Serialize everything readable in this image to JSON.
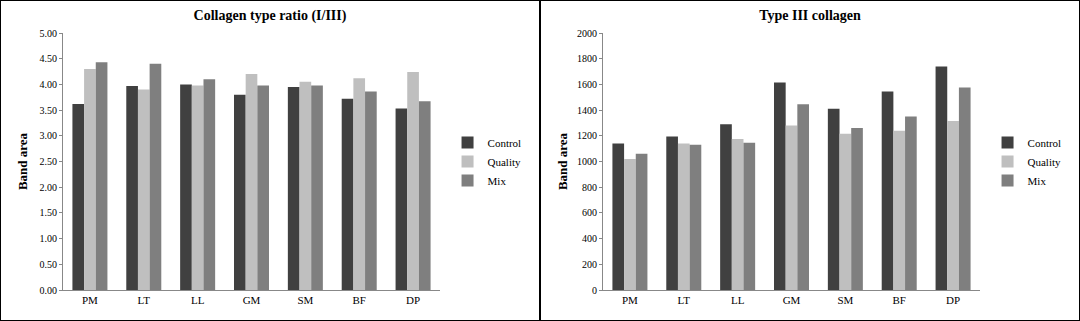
{
  "chart_data": [
    {
      "type": "bar",
      "title": "Collagen type ratio (I/III)",
      "y_label": "Band area",
      "categories": [
        "PM",
        "LT",
        "LL",
        "GM",
        "SM",
        "BF",
        "DP"
      ],
      "series": [
        {
          "name": "Control",
          "color": "#404040",
          "values": [
            3.62,
            3.97,
            4.0,
            3.8,
            3.95,
            3.72,
            3.53
          ]
        },
        {
          "name": "Quality",
          "color": "#bfbfbf",
          "values": [
            4.3,
            3.9,
            3.98,
            4.2,
            4.05,
            4.12,
            4.24
          ]
        },
        {
          "name": "Mix",
          "color": "#7f7f7f",
          "values": [
            4.43,
            4.4,
            4.1,
            3.98,
            3.98,
            3.86,
            3.67
          ]
        }
      ],
      "ylim": [
        0,
        5
      ],
      "yticks": [
        {
          "value": 0,
          "label": "0.00"
        },
        {
          "value": 0.5,
          "label": "0.50"
        },
        {
          "value": 1,
          "label": "1.00"
        },
        {
          "value": 1.5,
          "label": "1.50"
        },
        {
          "value": 2,
          "label": "2.00"
        },
        {
          "value": 2.5,
          "label": "2.50"
        },
        {
          "value": 3,
          "label": "3.00"
        },
        {
          "value": 3.5,
          "label": "3.50"
        },
        {
          "value": 4,
          "label": "4.00"
        },
        {
          "value": 4.5,
          "label": "4.50"
        },
        {
          "value": 5,
          "label": "5.00"
        }
      ],
      "grid": false,
      "legend": "right"
    },
    {
      "type": "bar",
      "title": "Type III collagen",
      "y_label": "Band area",
      "categories": [
        "PM",
        "LT",
        "LL",
        "GM",
        "SM",
        "BF",
        "DP"
      ],
      "series": [
        {
          "name": "Control",
          "color": "#404040",
          "values": [
            1140,
            1195,
            1290,
            1615,
            1410,
            1545,
            1740
          ]
        },
        {
          "name": "Quality",
          "color": "#bfbfbf",
          "values": [
            1020,
            1140,
            1175,
            1280,
            1215,
            1240,
            1315
          ]
        },
        {
          "name": "Mix",
          "color": "#7f7f7f",
          "values": [
            1060,
            1130,
            1145,
            1445,
            1260,
            1350,
            1575
          ]
        }
      ],
      "ylim": [
        0,
        2000
      ],
      "yticks": [
        0,
        200,
        400,
        600,
        800,
        1000,
        1200,
        1400,
        1600,
        1800,
        2000
      ],
      "grid": false,
      "legend": "right"
    }
  ]
}
